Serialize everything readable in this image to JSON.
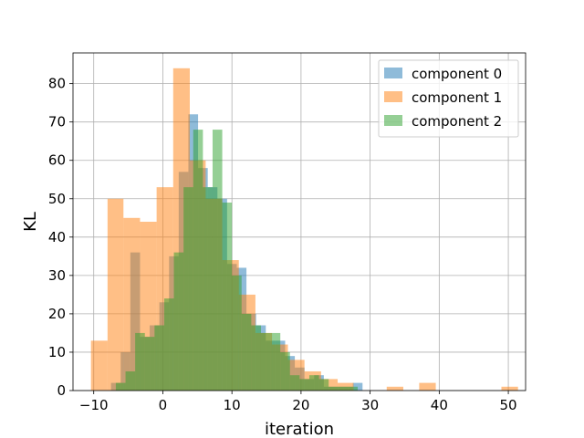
{
  "chart_data": {
    "type": "histogram",
    "xlabel": "iteration",
    "ylabel": "KL",
    "xlim": [
      -13.0,
      52.5
    ],
    "ylim": [
      0,
      88
    ],
    "xticks": [
      -10,
      0,
      10,
      20,
      30,
      40,
      50
    ],
    "yticks": [
      0,
      10,
      20,
      30,
      40,
      50,
      60,
      70,
      80
    ],
    "grid": true,
    "legend_position": "top-right",
    "series": [
      {
        "name": "component 0",
        "color": "#1f77b4",
        "bins": [
          [
            -7.5,
            -6.1,
            2
          ],
          [
            -6.1,
            -4.7,
            10
          ],
          [
            -4.7,
            -3.3,
            36
          ],
          [
            -3.3,
            -1.9,
            14
          ],
          [
            -1.9,
            -0.5,
            17
          ],
          [
            -0.5,
            0.9,
            23
          ],
          [
            0.9,
            2.3,
            35
          ],
          [
            2.3,
            3.7,
            57
          ],
          [
            3.7,
            5.1,
            72
          ],
          [
            5.1,
            6.5,
            58
          ],
          [
            6.5,
            7.9,
            53
          ],
          [
            7.9,
            9.3,
            50
          ],
          [
            9.3,
            10.7,
            33
          ],
          [
            10.7,
            12.1,
            32
          ],
          [
            12.1,
            13.5,
            20
          ],
          [
            13.5,
            14.9,
            17
          ],
          [
            14.9,
            16.3,
            13
          ],
          [
            16.3,
            17.7,
            13
          ],
          [
            17.7,
            19.1,
            9
          ],
          [
            19.1,
            20.5,
            6
          ],
          [
            20.5,
            21.9,
            3
          ],
          [
            21.9,
            23.3,
            4
          ],
          [
            23.3,
            24.7,
            1
          ],
          [
            24.7,
            26.1,
            1
          ],
          [
            26.1,
            27.5,
            1
          ],
          [
            27.5,
            28.9,
            2
          ]
        ]
      },
      {
        "name": "component 1",
        "color": "#ff7f0e",
        "bins": [
          [
            -10.4,
            -8.0,
            13
          ],
          [
            -8.0,
            -5.7,
            50
          ],
          [
            -5.7,
            -3.3,
            45
          ],
          [
            -3.3,
            -0.9,
            44
          ],
          [
            -0.9,
            1.5,
            53
          ],
          [
            1.5,
            3.9,
            84
          ],
          [
            3.9,
            6.2,
            60
          ],
          [
            6.2,
            8.6,
            50
          ],
          [
            8.6,
            11.0,
            34
          ],
          [
            11.0,
            13.4,
            25
          ],
          [
            13.4,
            15.8,
            15
          ],
          [
            15.8,
            18.1,
            12
          ],
          [
            18.1,
            20.5,
            8
          ],
          [
            20.5,
            22.9,
            5
          ],
          [
            22.9,
            25.3,
            3
          ],
          [
            25.3,
            27.6,
            2
          ],
          [
            27.6,
            30.0,
            0
          ],
          [
            30.0,
            32.4,
            0
          ],
          [
            32.4,
            34.8,
            1
          ],
          [
            34.8,
            37.1,
            0
          ],
          [
            37.1,
            39.5,
            2
          ],
          [
            39.5,
            41.9,
            0
          ],
          [
            41.9,
            44.3,
            0
          ],
          [
            44.3,
            46.7,
            0
          ],
          [
            46.7,
            49.0,
            0
          ],
          [
            49.0,
            51.4,
            1
          ]
        ]
      },
      {
        "name": "component 2",
        "color": "#2ca02c",
        "bins": [
          [
            -6.8,
            -5.4,
            2
          ],
          [
            -5.4,
            -4.0,
            5
          ],
          [
            -4.0,
            -2.6,
            15
          ],
          [
            -2.6,
            -1.2,
            14
          ],
          [
            -1.2,
            0.2,
            17
          ],
          [
            0.2,
            1.6,
            24
          ],
          [
            1.6,
            3.0,
            36
          ],
          [
            3.0,
            4.4,
            53
          ],
          [
            4.4,
            5.8,
            68
          ],
          [
            5.8,
            7.2,
            53
          ],
          [
            7.2,
            8.6,
            68
          ],
          [
            8.6,
            10.0,
            49
          ],
          [
            10.0,
            11.4,
            30
          ],
          [
            11.4,
            12.8,
            20
          ],
          [
            12.8,
            14.2,
            17
          ],
          [
            14.2,
            15.6,
            15
          ],
          [
            15.6,
            17.0,
            15
          ],
          [
            17.0,
            18.4,
            10
          ],
          [
            18.4,
            19.8,
            4
          ],
          [
            19.8,
            21.2,
            3
          ],
          [
            21.2,
            22.6,
            4
          ],
          [
            22.6,
            24.0,
            3
          ],
          [
            24.0,
            25.4,
            1
          ],
          [
            25.4,
            26.8,
            1
          ],
          [
            26.8,
            28.2,
            1
          ]
        ]
      }
    ]
  }
}
